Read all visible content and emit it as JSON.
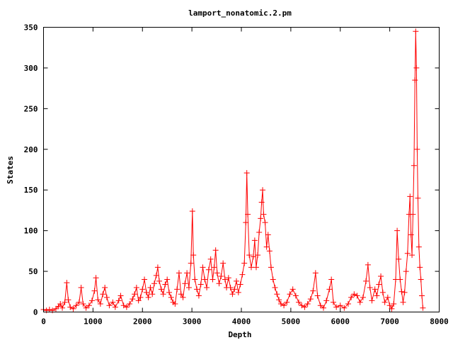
{
  "chart_data": {
    "type": "line",
    "title": "lamport_nonatomic.2.pm",
    "xlabel": "Depth",
    "ylabel": "States",
    "xlim": [
      0,
      8000
    ],
    "ylim": [
      0,
      350
    ],
    "x_ticks": [
      "0",
      "1000",
      "2000",
      "3000",
      "4000",
      "5000",
      "6000",
      "7000",
      "8000"
    ],
    "y_ticks": [
      "0",
      "50",
      "100",
      "150",
      "200",
      "250",
      "300",
      "350"
    ],
    "x_tick_values": [
      0,
      1000,
      2000,
      3000,
      4000,
      5000,
      6000,
      7000,
      8000
    ],
    "y_tick_values": [
      0,
      50,
      100,
      150,
      200,
      250,
      300,
      350
    ],
    "grid": false,
    "legend": "none",
    "marker": "plus",
    "color": "#ff0000",
    "series": [
      {
        "points": [
          [
            0,
            3
          ],
          [
            60,
            2
          ],
          [
            120,
            3
          ],
          [
            180,
            2
          ],
          [
            250,
            4
          ],
          [
            300,
            7
          ],
          [
            340,
            10
          ],
          [
            380,
            5
          ],
          [
            430,
            12
          ],
          [
            470,
            36
          ],
          [
            500,
            15
          ],
          [
            540,
            6
          ],
          [
            600,
            4
          ],
          [
            660,
            8
          ],
          [
            720,
            12
          ],
          [
            760,
            30
          ],
          [
            800,
            10
          ],
          [
            860,
            5
          ],
          [
            920,
            8
          ],
          [
            980,
            14
          ],
          [
            1030,
            26
          ],
          [
            1060,
            42
          ],
          [
            1100,
            15
          ],
          [
            1150,
            10
          ],
          [
            1200,
            22
          ],
          [
            1240,
            30
          ],
          [
            1280,
            18
          ],
          [
            1330,
            8
          ],
          [
            1400,
            12
          ],
          [
            1450,
            6
          ],
          [
            1520,
            14
          ],
          [
            1560,
            20
          ],
          [
            1620,
            8
          ],
          [
            1680,
            6
          ],
          [
            1740,
            10
          ],
          [
            1800,
            16
          ],
          [
            1840,
            22
          ],
          [
            1880,
            30
          ],
          [
            1920,
            14
          ],
          [
            1960,
            18
          ],
          [
            2000,
            28
          ],
          [
            2040,
            40
          ],
          [
            2080,
            24
          ],
          [
            2120,
            18
          ],
          [
            2160,
            30
          ],
          [
            2200,
            22
          ],
          [
            2240,
            35
          ],
          [
            2280,
            45
          ],
          [
            2310,
            55
          ],
          [
            2340,
            38
          ],
          [
            2380,
            28
          ],
          [
            2420,
            22
          ],
          [
            2460,
            34
          ],
          [
            2500,
            40
          ],
          [
            2540,
            24
          ],
          [
            2580,
            18
          ],
          [
            2620,
            12
          ],
          [
            2660,
            10
          ],
          [
            2700,
            28
          ],
          [
            2740,
            48
          ],
          [
            2780,
            22
          ],
          [
            2820,
            18
          ],
          [
            2860,
            35
          ],
          [
            2900,
            48
          ],
          [
            2940,
            30
          ],
          [
            2980,
            60
          ],
          [
            3010,
            124
          ],
          [
            3030,
            70
          ],
          [
            3060,
            40
          ],
          [
            3100,
            28
          ],
          [
            3140,
            20
          ],
          [
            3180,
            34
          ],
          [
            3220,
            55
          ],
          [
            3260,
            40
          ],
          [
            3300,
            30
          ],
          [
            3340,
            52
          ],
          [
            3380,
            65
          ],
          [
            3420,
            40
          ],
          [
            3450,
            55
          ],
          [
            3480,
            76
          ],
          [
            3510,
            48
          ],
          [
            3550,
            35
          ],
          [
            3590,
            44
          ],
          [
            3630,
            60
          ],
          [
            3670,
            40
          ],
          [
            3700,
            30
          ],
          [
            3740,
            42
          ],
          [
            3780,
            30
          ],
          [
            3820,
            22
          ],
          [
            3860,
            28
          ],
          [
            3900,
            38
          ],
          [
            3940,
            24
          ],
          [
            3980,
            34
          ],
          [
            4020,
            46
          ],
          [
            4060,
            60
          ],
          [
            4090,
            110
          ],
          [
            4110,
            171
          ],
          [
            4130,
            120
          ],
          [
            4160,
            70
          ],
          [
            4200,
            55
          ],
          [
            4240,
            68
          ],
          [
            4270,
            88
          ],
          [
            4300,
            55
          ],
          [
            4330,
            70
          ],
          [
            4360,
            98
          ],
          [
            4390,
            115
          ],
          [
            4410,
            135
          ],
          [
            4430,
            150
          ],
          [
            4450,
            120
          ],
          [
            4480,
            110
          ],
          [
            4510,
            80
          ],
          [
            4540,
            95
          ],
          [
            4570,
            75
          ],
          [
            4600,
            55
          ],
          [
            4640,
            40
          ],
          [
            4680,
            30
          ],
          [
            4720,
            22
          ],
          [
            4760,
            15
          ],
          [
            4800,
            10
          ],
          [
            4860,
            8
          ],
          [
            4920,
            12
          ],
          [
            4980,
            22
          ],
          [
            5040,
            28
          ],
          [
            5100,
            20
          ],
          [
            5160,
            12
          ],
          [
            5220,
            8
          ],
          [
            5280,
            6
          ],
          [
            5340,
            10
          ],
          [
            5400,
            16
          ],
          [
            5450,
            26
          ],
          [
            5500,
            48
          ],
          [
            5540,
            20
          ],
          [
            5600,
            8
          ],
          [
            5660,
            5
          ],
          [
            5720,
            14
          ],
          [
            5780,
            28
          ],
          [
            5820,
            40
          ],
          [
            5860,
            12
          ],
          [
            5920,
            6
          ],
          [
            6000,
            8
          ],
          [
            6080,
            5
          ],
          [
            6160,
            10
          ],
          [
            6220,
            18
          ],
          [
            6280,
            22
          ],
          [
            6340,
            20
          ],
          [
            6400,
            12
          ],
          [
            6460,
            18
          ],
          [
            6520,
            38
          ],
          [
            6560,
            58
          ],
          [
            6600,
            30
          ],
          [
            6640,
            14
          ],
          [
            6700,
            28
          ],
          [
            6740,
            20
          ],
          [
            6780,
            34
          ],
          [
            6820,
            44
          ],
          [
            6860,
            24
          ],
          [
            6900,
            12
          ],
          [
            6960,
            18
          ],
          [
            7000,
            8
          ],
          [
            7040,
            4
          ],
          [
            7080,
            10
          ],
          [
            7120,
            40
          ],
          [
            7150,
            100
          ],
          [
            7180,
            65
          ],
          [
            7210,
            40
          ],
          [
            7240,
            25
          ],
          [
            7270,
            12
          ],
          [
            7300,
            24
          ],
          [
            7330,
            50
          ],
          [
            7360,
            72
          ],
          [
            7390,
            120
          ],
          [
            7410,
            142
          ],
          [
            7430,
            95
          ],
          [
            7450,
            70
          ],
          [
            7470,
            120
          ],
          [
            7490,
            180
          ],
          [
            7510,
            285
          ],
          [
            7525,
            345
          ],
          [
            7540,
            300
          ],
          [
            7555,
            200
          ],
          [
            7570,
            140
          ],
          [
            7590,
            80
          ],
          [
            7610,
            55
          ],
          [
            7630,
            40
          ],
          [
            7650,
            20
          ],
          [
            7670,
            5
          ]
        ]
      }
    ]
  }
}
